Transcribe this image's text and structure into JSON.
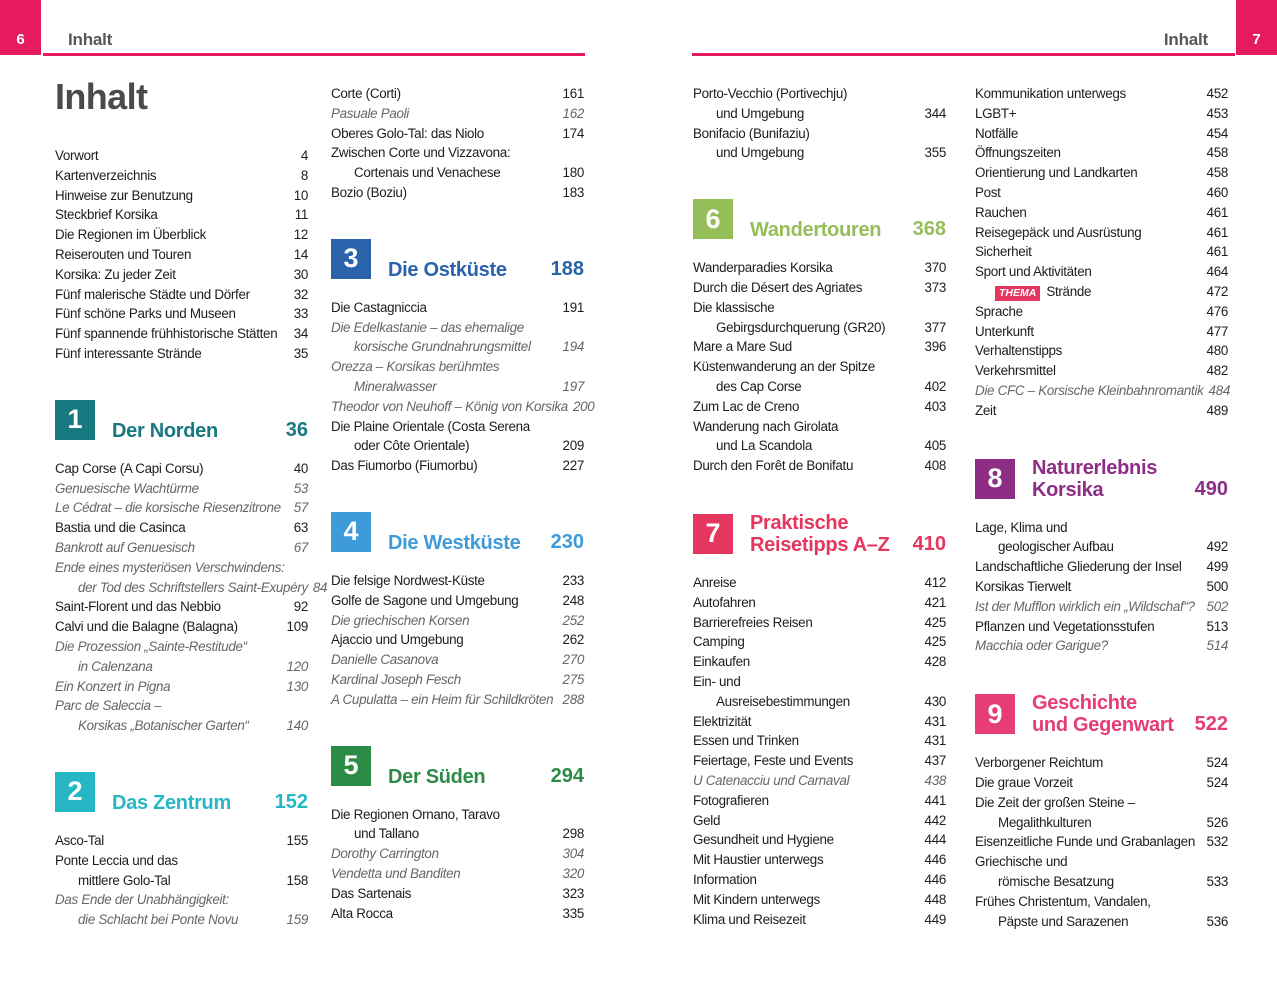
{
  "header": {
    "left": {
      "page_number": "6",
      "label": "Inhalt"
    },
    "right": {
      "page_number": "7",
      "label": "Inhalt"
    },
    "accent_color": "#e61a5f"
  },
  "title": "Inhalt",
  "badge_color": "#e6355e",
  "columns": [
    {
      "blocks": [
        {
          "type": "entries",
          "items": [
            {
              "t": "Vorwort",
              "p": "4"
            },
            {
              "t": "Kartenverzeichnis",
              "p": "8"
            },
            {
              "t": "Hinweise zur Benutzung",
              "p": "10"
            },
            {
              "t": "Steckbrief Korsika",
              "p": "11"
            },
            {
              "t": "Die Regionen im Überblick",
              "p": "12"
            },
            {
              "t": "Reiserouten und Touren",
              "p": "14"
            },
            {
              "t": "Korsika: Zu jeder Zeit",
              "p": "30"
            },
            {
              "t": "Fünf malerische Städte und Dörfer",
              "p": "32"
            },
            {
              "t": "Fünf schöne Parks und Museen",
              "p": "33"
            },
            {
              "t": "Fünf spannende frühhistorische Stätten",
              "p": "34"
            },
            {
              "t": "Fünf interessante Strände",
              "p": "35"
            }
          ]
        },
        {
          "type": "chapter",
          "num": "1",
          "title": [
            "Der Norden"
          ],
          "page": "36",
          "color": "#17787f"
        },
        {
          "type": "entries",
          "items": [
            {
              "t": "Cap Corse (A Capi Corsu)",
              "p": "40"
            },
            {
              "t": "Genuesische Wachtürme",
              "p": "53",
              "it": true
            },
            {
              "t": "Le Cédrat – die korsische Riesenzitrone",
              "p": "57",
              "it": true
            },
            {
              "t": "Bastia und die Casinca",
              "p": "63"
            },
            {
              "t": "Bankrott auf Genuesisch",
              "p": "67",
              "it": true
            },
            {
              "t": [
                "Ende eines mysteriösen Verschwindens:",
                "der Tod des Schriftstellers Saint-Exupéry"
              ],
              "p": "84",
              "it": true
            },
            {
              "t": "Saint-Florent und das Nebbio",
              "p": "92"
            },
            {
              "t": "Calvi und die Balagne (Balagna)",
              "p": "109"
            },
            {
              "t": [
                "Die Prozession „Sainte-Restitude“",
                "in Calenzana"
              ],
              "p": "120",
              "it": true
            },
            {
              "t": "Ein Konzert in Pigna",
              "p": "130",
              "it": true
            },
            {
              "t": [
                "Parc de Saleccia –",
                "Korsikas „Botanischer Garten“"
              ],
              "p": "140",
              "it": true
            }
          ]
        },
        {
          "type": "chapter",
          "num": "2",
          "title": [
            "Das Zentrum"
          ],
          "page": "152",
          "color": "#27b6c4"
        },
        {
          "type": "entries",
          "items": [
            {
              "t": "Asco-Tal",
              "p": "155"
            },
            {
              "t": [
                "Ponte Leccia und das",
                "mittlere Golo-Tal"
              ],
              "p": "158"
            },
            {
              "t": [
                "Das Ende der Unabhängigkeit:",
                "die Schlacht bei Ponte Novu"
              ],
              "p": "159",
              "it": true
            }
          ]
        }
      ]
    },
    {
      "blocks": [
        {
          "type": "entries",
          "items": [
            {
              "t": "Corte (Corti)",
              "p": "161"
            },
            {
              "t": "Pasuale Paoli",
              "p": "162",
              "it": true
            },
            {
              "t": "Oberes Golo-Tal: das Niolo",
              "p": "174"
            },
            {
              "t": [
                "Zwischen Corte und Vizzavona:",
                "Cortenais und Venachese"
              ],
              "p": "180"
            },
            {
              "t": "Bozio (Boziu)",
              "p": "183"
            }
          ]
        },
        {
          "type": "chapter",
          "num": "3",
          "title": [
            "Die Ostküste"
          ],
          "page": "188",
          "color": "#2a63ac"
        },
        {
          "type": "entries",
          "items": [
            {
              "t": "Die Castagniccia",
              "p": "191"
            },
            {
              "t": [
                "Die Edelkastanie – das ehemalige",
                "korsische Grundnahrungsmittel"
              ],
              "p": "194",
              "it": true
            },
            {
              "t": [
                "Orezza – Korsikas berühmtes",
                "Mineralwasser"
              ],
              "p": "197",
              "it": true
            },
            {
              "t": "Theodor von Neuhoff – König von Korsika",
              "p": "200",
              "it": true
            },
            {
              "t": [
                "Die Plaine Orientale (Costa Serena",
                "oder Côte Orientale)"
              ],
              "p": "209"
            },
            {
              "t": "Das Fiumorbo (Fiumorbu)",
              "p": "227"
            }
          ]
        },
        {
          "type": "chapter",
          "num": "4",
          "title": [
            "Die Westküste"
          ],
          "page": "230",
          "color": "#3e9bd9"
        },
        {
          "type": "entries",
          "items": [
            {
              "t": "Die felsige Nordwest-Küste",
              "p": "233"
            },
            {
              "t": "Golfe de Sagone und Umgebung",
              "p": "248"
            },
            {
              "t": "Die griechischen Korsen",
              "p": "252",
              "it": true
            },
            {
              "t": "Ajaccio und Umgebung",
              "p": "262"
            },
            {
              "t": "Danielle Casanova",
              "p": "270",
              "it": true
            },
            {
              "t": "Kardinal Joseph Fesch",
              "p": "275",
              "it": true
            },
            {
              "t": "A Cupulatta – ein Heim für Schildkröten",
              "p": "288",
              "it": true
            }
          ]
        },
        {
          "type": "chapter",
          "num": "5",
          "title": [
            "Der Süden"
          ],
          "page": "294",
          "color": "#2c8c46"
        },
        {
          "type": "entries",
          "items": [
            {
              "t": [
                "Die Regionen Ornano, Taravo",
                "und Tallano"
              ],
              "p": "298"
            },
            {
              "t": "Dorothy Carrington",
              "p": "304",
              "it": true
            },
            {
              "t": "Vendetta und Banditen",
              "p": "320",
              "it": true
            },
            {
              "t": "Das Sartenais",
              "p": "323"
            },
            {
              "t": "Alta Rocca",
              "p": "335"
            }
          ]
        }
      ]
    },
    {
      "blocks": [
        {
          "type": "entries",
          "items": [
            {
              "t": [
                "Porto-Vecchio (Portivechju)",
                "und Umgebung"
              ],
              "p": "344"
            },
            {
              "t": [
                "Bonifacio (Bunifaziu)",
                "und Umgebung"
              ],
              "p": "355"
            }
          ]
        },
        {
          "type": "chapter",
          "num": "6",
          "title": [
            "Wandertouren"
          ],
          "page": "368",
          "color": "#95bd58"
        },
        {
          "type": "entries",
          "items": [
            {
              "t": "Wanderparadies Korsika",
              "p": "370"
            },
            {
              "t": "Durch die Désert des Agriates",
              "p": "373"
            },
            {
              "t": [
                "Die klassische",
                "Gebirgsdurchquerung (GR20)"
              ],
              "p": "377"
            },
            {
              "t": "Mare a Mare Sud",
              "p": "396"
            },
            {
              "t": [
                "Küstenwanderung an der Spitze",
                "des Cap Corse"
              ],
              "p": "402"
            },
            {
              "t": "Zum Lac de Creno",
              "p": "403"
            },
            {
              "t": [
                "Wanderung nach Girolata",
                "und La Scandola"
              ],
              "p": "405"
            },
            {
              "t": "Durch den Forêt de Bonifatu",
              "p": "408"
            }
          ]
        },
        {
          "type": "chapter",
          "num": "7",
          "title": [
            "Praktische",
            "Reisetipps A–Z"
          ],
          "page": "410",
          "color": "#e6355e"
        },
        {
          "type": "entries",
          "items": [
            {
              "t": "Anreise",
              "p": "412"
            },
            {
              "t": "Autofahren",
              "p": "421"
            },
            {
              "t": "Barrierefreies Reisen",
              "p": "425"
            },
            {
              "t": "Camping",
              "p": "425"
            },
            {
              "t": "Einkaufen",
              "p": "428"
            },
            {
              "t": [
                "Ein- und",
                "Ausreisebestimmungen"
              ],
              "p": "430"
            },
            {
              "t": "Elektrizität",
              "p": "431"
            },
            {
              "t": "Essen und Trinken",
              "p": "431"
            },
            {
              "t": "Feiertage, Feste und Events",
              "p": "437"
            },
            {
              "t": "U Catenacciu und Carnaval",
              "p": "438",
              "it": true
            },
            {
              "t": "Fotografieren",
              "p": "441"
            },
            {
              "t": "Geld",
              "p": "442"
            },
            {
              "t": "Gesundheit und Hygiene",
              "p": "444"
            },
            {
              "t": "Mit Haustier unterwegs",
              "p": "446"
            },
            {
              "t": "Information",
              "p": "446"
            },
            {
              "t": "Mit Kindern unterwegs",
              "p": "448"
            },
            {
              "t": "Klima und Reisezeit",
              "p": "449"
            }
          ]
        }
      ]
    },
    {
      "blocks": [
        {
          "type": "entries",
          "items": [
            {
              "t": "Kommunikation unterwegs",
              "p": "452"
            },
            {
              "t": "LGBT+",
              "p": "453"
            },
            {
              "t": "Notfälle",
              "p": "454"
            },
            {
              "t": "Öffnungszeiten",
              "p": "458"
            },
            {
              "t": "Orientierung und Landkarten",
              "p": "458"
            },
            {
              "t": "Post",
              "p": "460"
            },
            {
              "t": "Rauchen",
              "p": "461"
            },
            {
              "t": "Reisegepäck und Ausrüstung",
              "p": "461"
            },
            {
              "t": "Sicherheit",
              "p": "461"
            },
            {
              "t": "Sport und Aktivitäten",
              "p": "464"
            },
            {
              "t": "Strände",
              "p": "472",
              "badge": "THEMA"
            },
            {
              "t": "Sprache",
              "p": "476"
            },
            {
              "t": "Unterkunft",
              "p": "477"
            },
            {
              "t": "Verhaltenstipps",
              "p": "480"
            },
            {
              "t": "Verkehrsmittel",
              "p": "482"
            },
            {
              "t": "Die CFC – Korsische Kleinbahnromantik",
              "p": "484",
              "it": true
            },
            {
              "t": "Zeit",
              "p": "489"
            }
          ]
        },
        {
          "type": "chapter",
          "num": "8",
          "title": [
            "Naturerlebnis",
            "Korsika"
          ],
          "page": "490",
          "color": "#8e2d85"
        },
        {
          "type": "entries",
          "items": [
            {
              "t": [
                "Lage, Klima und",
                "geologischer Aufbau"
              ],
              "p": "492"
            },
            {
              "t": "Landschaftliche Gliederung der Insel",
              "p": "499"
            },
            {
              "t": "Korsikas Tierwelt",
              "p": "500"
            },
            {
              "t": "Ist der Mufflon wirklich ein „Wildschaf“?",
              "p": "502",
              "it": true
            },
            {
              "t": "Pflanzen und Vegetationsstufen",
              "p": "513"
            },
            {
              "t": "Macchia oder Garigue?",
              "p": "514",
              "it": true
            }
          ]
        },
        {
          "type": "chapter",
          "num": "9",
          "title": [
            "Geschichte",
            "und Gegenwart"
          ],
          "page": "522",
          "color": "#e63d74"
        },
        {
          "type": "entries",
          "items": [
            {
              "t": "Verborgener Reichtum",
              "p": "524"
            },
            {
              "t": "Die graue Vorzeit",
              "p": "524"
            },
            {
              "t": [
                "Die Zeit der großen Steine –",
                "Megalithkulturen"
              ],
              "p": "526"
            },
            {
              "t": "Eisenzeitliche Funde und Grabanlagen",
              "p": "532"
            },
            {
              "t": [
                "Griechische und",
                "römische Besatzung"
              ],
              "p": "533"
            },
            {
              "t": [
                "Frühes Christentum, Vandalen,",
                "Päpste und Sarazenen"
              ],
              "p": "536"
            }
          ]
        }
      ]
    }
  ]
}
